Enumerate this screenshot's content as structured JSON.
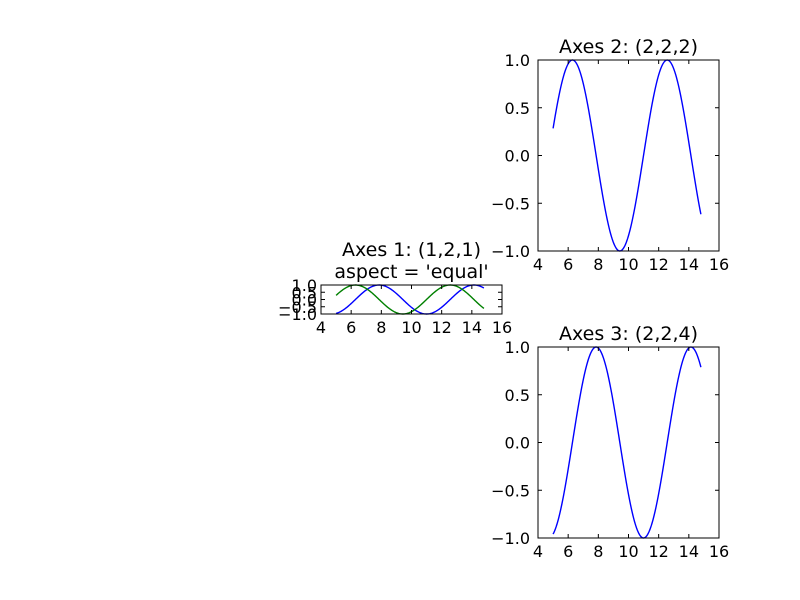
{
  "colors": {
    "blue": "#0000ff",
    "green": "#008000",
    "frame": "#000000",
    "background": "#ffffff"
  },
  "chart_data": [
    {
      "id": "ax1",
      "type": "line",
      "title_lines": [
        "Axes 1: (1,2,1)",
        "aspect = 'equal'"
      ],
      "xlim": [
        4,
        16
      ],
      "ylim": [
        -1.0,
        1.0
      ],
      "xticks": [
        4,
        6,
        8,
        10,
        12,
        14,
        16
      ],
      "yticks": [
        -1.0,
        -0.5,
        0.0,
        0.5,
        1.0
      ],
      "xtick_labels": [
        "4",
        "6",
        "8",
        "10",
        "12",
        "14",
        "16"
      ],
      "ytick_labels": [
        "−1.0",
        "−0.5",
        "0.0",
        "0.5",
        "1.0"
      ],
      "grid": false,
      "series": [
        {
          "color": "blue",
          "function": "sin(x)",
          "x_range": [
            5,
            14.8
          ]
        },
        {
          "color": "green",
          "function": "cos(x)",
          "x_range": [
            5,
            14.8
          ]
        }
      ]
    },
    {
      "id": "ax2",
      "type": "line",
      "title_lines": [
        "Axes 2: (2,2,2)"
      ],
      "xlim": [
        4,
        16
      ],
      "ylim": [
        -1.0,
        1.0
      ],
      "xticks": [
        4,
        6,
        8,
        10,
        12,
        14,
        16
      ],
      "yticks": [
        -1.0,
        -0.5,
        0.0,
        0.5,
        1.0
      ],
      "xtick_labels": [
        "4",
        "6",
        "8",
        "10",
        "12",
        "14",
        "16"
      ],
      "ytick_labels": [
        "−1.0",
        "−0.5",
        "0.0",
        "0.5",
        "1.0"
      ],
      "grid": false,
      "series": [
        {
          "color": "blue",
          "function": "cos(x)",
          "x_range": [
            5,
            14.8
          ]
        }
      ]
    },
    {
      "id": "ax3",
      "type": "line",
      "title_lines": [
        "Axes 3: (2,2,4)"
      ],
      "xlim": [
        4,
        16
      ],
      "ylim": [
        -1.0,
        1.0
      ],
      "xticks": [
        4,
        6,
        8,
        10,
        12,
        14,
        16
      ],
      "yticks": [
        -1.0,
        -0.5,
        0.0,
        0.5,
        1.0
      ],
      "xtick_labels": [
        "4",
        "6",
        "8",
        "10",
        "12",
        "14",
        "16"
      ],
      "ytick_labels": [
        "−1.0",
        "−0.5",
        "0.0",
        "0.5",
        "1.0"
      ],
      "grid": false,
      "series": [
        {
          "color": "blue",
          "function": "sin(x)",
          "x_range": [
            5,
            14.8
          ]
        }
      ]
    }
  ]
}
